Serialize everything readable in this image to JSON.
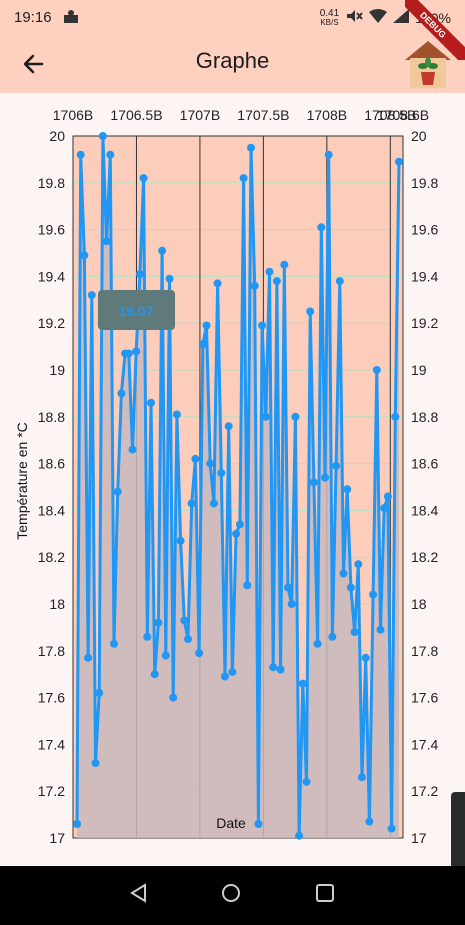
{
  "status_bar": {
    "time": "19:16",
    "speed_value": "0.41",
    "speed_unit": "KB/S",
    "battery": "100%"
  },
  "app_bar": {
    "title": "Graphe",
    "debug_label": "DEBUG"
  },
  "chart_data": {
    "type": "area",
    "ylabel": "Température en *C",
    "xlabel": "Date",
    "ylim": [
      17,
      20
    ],
    "yticks": [
      17,
      17.2,
      17.4,
      17.6,
      17.8,
      18,
      18.2,
      18.4,
      18.6,
      18.8,
      19,
      19.2,
      19.4,
      19.6,
      19.8,
      20
    ],
    "ytick_labels": [
      "17",
      "17.2",
      "17.4",
      "17.6",
      "17.8",
      "18",
      "18.2",
      "18.4",
      "18.6",
      "18.8",
      "19",
      "19.2",
      "19.4",
      "19.6",
      "19.8",
      "20"
    ],
    "xlim": [
      1706000000,
      1708600000
    ],
    "xticks": [
      1706000000,
      1706500000,
      1707000000,
      1707500000,
      1708000000,
      1708500000,
      1708600000
    ],
    "xtick_labels": [
      "1706B",
      "1706.5B",
      "1707B",
      "1707.5B",
      "1708B",
      "1708.5B",
      "1708.6B"
    ],
    "tooltip": "19.07",
    "tooltip_x": 1706500000,
    "grid": true,
    "y": [
      17.06,
      19.92,
      19.49,
      17.77,
      19.32,
      17.32,
      17.62,
      20.0,
      19.55,
      19.92,
      17.83,
      18.48,
      18.9,
      19.07,
      19.07,
      18.66,
      19.08,
      19.41,
      19.82,
      17.86,
      18.86,
      17.7,
      17.92,
      19.51,
      17.78,
      19.39,
      17.6,
      18.81,
      18.27,
      17.93,
      17.85,
      18.43,
      18.62,
      17.79,
      19.11,
      19.19,
      18.6,
      18.43,
      19.37,
      18.56,
      17.69,
      18.76,
      17.71,
      18.3,
      18.34,
      19.82,
      18.08,
      19.95,
      19.36,
      17.06,
      19.19,
      18.8,
      19.42,
      17.73,
      19.38,
      17.72,
      19.45,
      18.07,
      18.0,
      18.8,
      17.01,
      17.66,
      17.24,
      19.25,
      18.52,
      17.83,
      19.61,
      18.54,
      19.92,
      17.86,
      18.59,
      19.38,
      18.13,
      18.49,
      18.07,
      17.88,
      18.17,
      17.26,
      17.77,
      17.07,
      18.04,
      19.0,
      17.89,
      18.41,
      18.46,
      17.04,
      18.8,
      19.89
    ]
  }
}
